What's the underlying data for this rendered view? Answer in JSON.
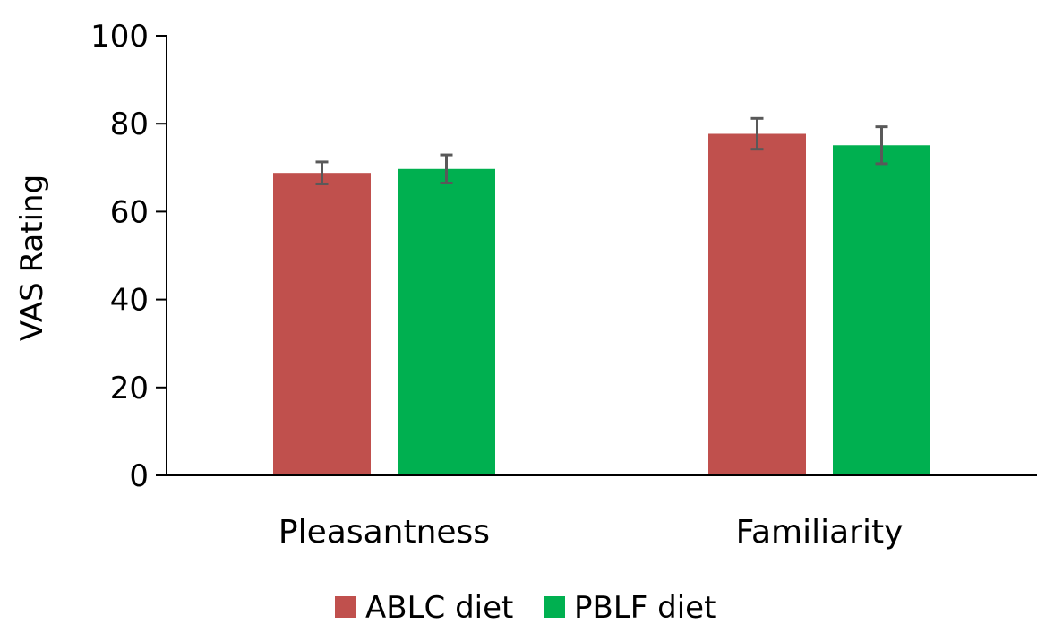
{
  "chart_data": {
    "type": "bar",
    "title": "",
    "xlabel": "",
    "ylabel": "VAS Rating",
    "ylim": [
      0,
      100
    ],
    "yticks": [
      0,
      20,
      40,
      60,
      80,
      100
    ],
    "ytick_labels": [
      "0",
      "20",
      "40",
      "60",
      "80",
      "100"
    ],
    "categories": [
      "Pleasantness",
      "Familiarity"
    ],
    "series": [
      {
        "name": "ABLC diet",
        "color": "#C0504D",
        "values": [
          68.8,
          77.7
        ],
        "error": [
          2.5,
          3.5
        ]
      },
      {
        "name": "PBLF diet",
        "color": "#00B050",
        "values": [
          69.7,
          75.1
        ],
        "error": [
          3.2,
          4.2
        ]
      }
    ],
    "legend": {
      "position": "bottom",
      "entries": [
        "ABLC diet",
        "PBLF diet"
      ]
    },
    "grid": false
  }
}
